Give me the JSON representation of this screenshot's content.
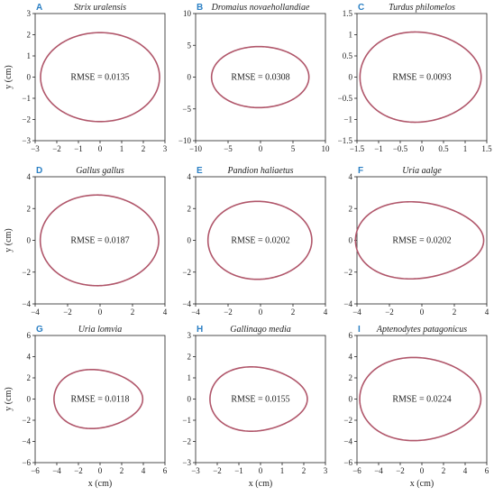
{
  "colors": {
    "curve": "#b0566a",
    "axis": "#222222",
    "letter": "#2a7fc4"
  },
  "axis_labels": {
    "y": "y (cm)",
    "x": "x (cm)"
  },
  "chart_data": [
    {
      "type": "line",
      "letter": "A",
      "title": "Strix uralensis",
      "rmse": "RMSE = 0.0135",
      "xlim": [
        -3,
        3
      ],
      "ylim": [
        -3,
        3
      ],
      "xticks": [
        -3,
        -2,
        -1,
        0,
        1,
        2,
        3
      ],
      "yticks": [
        -3,
        -2,
        -1,
        0,
        1,
        2,
        3
      ],
      "egg": {
        "length_left": 2.75,
        "length_right": 2.75,
        "half_width": 2.1,
        "asym": 0.0
      }
    },
    {
      "type": "line",
      "letter": "B",
      "title": "Dromaius novaehollandiae",
      "rmse": "RMSE = 0.0308",
      "xlim": [
        -10,
        10
      ],
      "ylim": [
        -10,
        10
      ],
      "xticks": [
        -10,
        -5,
        0,
        5,
        10
      ],
      "yticks": [
        -10,
        -5,
        0,
        5,
        10
      ],
      "egg": {
        "length_left": 7.5,
        "length_right": 7.5,
        "half_width": 4.8,
        "asym": 0.05
      }
    },
    {
      "type": "line",
      "letter": "C",
      "title": "Turdus philomelos",
      "rmse": "RMSE = 0.0093",
      "xlim": [
        -1.5,
        1.5
      ],
      "ylim": [
        -1.5,
        1.5
      ],
      "xticks": [
        -1.5,
        -1,
        -0.5,
        0,
        0.5,
        1,
        1.5
      ],
      "yticks": [
        -1.5,
        -1,
        -0.5,
        0,
        0.5,
        1,
        1.5
      ],
      "egg": {
        "length_left": 1.4,
        "length_right": 1.4,
        "half_width": 1.06,
        "asym": 0.18
      }
    },
    {
      "type": "line",
      "letter": "D",
      "title": "Gallus gallus",
      "rmse": "RMSE = 0.0187",
      "xlim": [
        -4,
        4
      ],
      "ylim": [
        -4,
        4
      ],
      "xticks": [
        -4,
        -2,
        0,
        2,
        4
      ],
      "yticks": [
        -4,
        -2,
        0,
        2,
        4
      ],
      "egg": {
        "length_left": 3.65,
        "length_right": 3.65,
        "half_width": 2.85,
        "asym": 0.08
      }
    },
    {
      "type": "line",
      "letter": "E",
      "title": "Pandion haliaetus",
      "rmse": "RMSE = 0.0202",
      "xlim": [
        -4,
        4
      ],
      "ylim": [
        -4,
        4
      ],
      "xticks": [
        -4,
        -2,
        0,
        2,
        4
      ],
      "yticks": [
        -4,
        -2,
        0,
        2,
        4
      ],
      "egg": {
        "length_left": 3.2,
        "length_right": 3.2,
        "half_width": 2.45,
        "asym": 0.1
      }
    },
    {
      "type": "line",
      "letter": "F",
      "title": "Uria aalge",
      "rmse": "RMSE = 0.0202",
      "xlim": [
        -4,
        4
      ],
      "ylim": [
        -4,
        4
      ],
      "xticks": [
        -4,
        -2,
        0,
        2,
        4
      ],
      "yticks": [
        -4,
        -2,
        0,
        2,
        4
      ],
      "egg": {
        "length_left": 3.95,
        "length_right": 3.95,
        "half_width": 2.4,
        "asym": 0.3
      }
    },
    {
      "type": "line",
      "letter": "G",
      "title": "Uria lomvia",
      "rmse": "RMSE = 0.0118",
      "xlim": [
        -6,
        6
      ],
      "ylim": [
        -6,
        6
      ],
      "xticks": [
        -6,
        -4,
        -2,
        0,
        2,
        4,
        6
      ],
      "yticks": [
        -6,
        -4,
        -2,
        0,
        2,
        4,
        6
      ],
      "egg": {
        "length_left": 4.1,
        "length_right": 4.1,
        "half_width": 2.75,
        "asym": 0.32
      }
    },
    {
      "type": "line",
      "letter": "H",
      "title": "Gallinago media",
      "rmse": "RMSE = 0.0155",
      "xlim": [
        -3,
        3
      ],
      "ylim": [
        -3,
        3
      ],
      "xticks": [
        -3,
        -2,
        -1,
        0,
        1,
        2,
        3
      ],
      "yticks": [
        -3,
        -2,
        -1,
        0,
        1,
        2,
        3
      ],
      "egg": {
        "length_left": 2.25,
        "length_right": 2.25,
        "half_width": 1.5,
        "asym": 0.32
      }
    },
    {
      "type": "line",
      "letter": "I",
      "title": "Aptenodytes patagonicus",
      "rmse": "RMSE = 0.0224",
      "xlim": [
        -6,
        6
      ],
      "ylim": [
        -6,
        6
      ],
      "xticks": [
        -6,
        -4,
        -2,
        0,
        2,
        4,
        6
      ],
      "yticks": [
        -6,
        -4,
        -2,
        0,
        2,
        4,
        6
      ],
      "egg": {
        "length_left": 5.6,
        "length_right": 5.6,
        "half_width": 3.9,
        "asym": 0.22
      }
    }
  ]
}
